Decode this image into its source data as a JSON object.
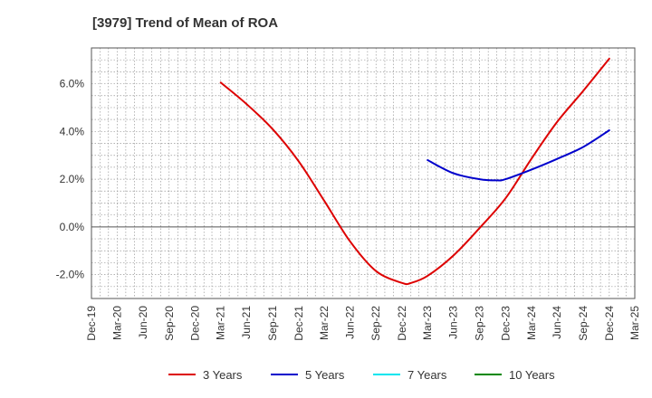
{
  "chart_data": {
    "type": "line",
    "title": "[3979]  Trend of Mean of ROA",
    "xlabel": "",
    "ylabel": "",
    "x_ticks": [
      "Dec-19",
      "Mar-20",
      "Jun-20",
      "Sep-20",
      "Dec-20",
      "Mar-21",
      "Jun-21",
      "Sep-21",
      "Dec-21",
      "Mar-22",
      "Jun-22",
      "Sep-22",
      "Dec-22",
      "Mar-23",
      "Jun-23",
      "Sep-23",
      "Dec-23",
      "Mar-24",
      "Jun-24",
      "Sep-24",
      "Dec-24",
      "Mar-25"
    ],
    "y_ticks": [
      {
        "value": 6,
        "label": "6.0%"
      },
      {
        "value": 4,
        "label": "4.0%"
      },
      {
        "value": 2,
        "label": "2.0%"
      },
      {
        "value": 0,
        "label": "0.0%"
      },
      {
        "value": -2,
        "label": "-2.0%"
      }
    ],
    "ylim": [
      -3.0,
      7.5
    ],
    "grid": true,
    "legend_position": "bottom",
    "series": [
      {
        "name": "3 Years",
        "color": "#dd0000",
        "x": [
          "Mar-21",
          "Jun-21",
          "Sep-21",
          "Dec-21",
          "Mar-22",
          "Jun-22",
          "Sep-22",
          "Dec-22",
          "Jan-23",
          "Mar-23",
          "Jun-23",
          "Sep-23",
          "Dec-23",
          "Mar-24",
          "Jun-24",
          "Sep-24",
          "Dec-24"
        ],
        "values": [
          6.05,
          5.15,
          4.1,
          2.75,
          1.1,
          -0.6,
          -1.85,
          -2.35,
          -2.35,
          -2.05,
          -1.2,
          -0.05,
          1.2,
          2.85,
          4.4,
          5.7,
          7.05
        ]
      },
      {
        "name": "5 Years",
        "color": "#0000cc",
        "x": [
          "Mar-23",
          "Jun-23",
          "Sep-23",
          "Nov-23",
          "Dec-23",
          "Mar-24",
          "Jun-24",
          "Sep-24",
          "Dec-24"
        ],
        "values": [
          2.8,
          2.25,
          2.0,
          1.95,
          2.0,
          2.4,
          2.85,
          3.35,
          4.05
        ]
      },
      {
        "name": "7 Years",
        "color": "#00e5ee",
        "x": [],
        "values": []
      },
      {
        "name": "10 Years",
        "color": "#008800",
        "x": [],
        "values": []
      }
    ]
  }
}
